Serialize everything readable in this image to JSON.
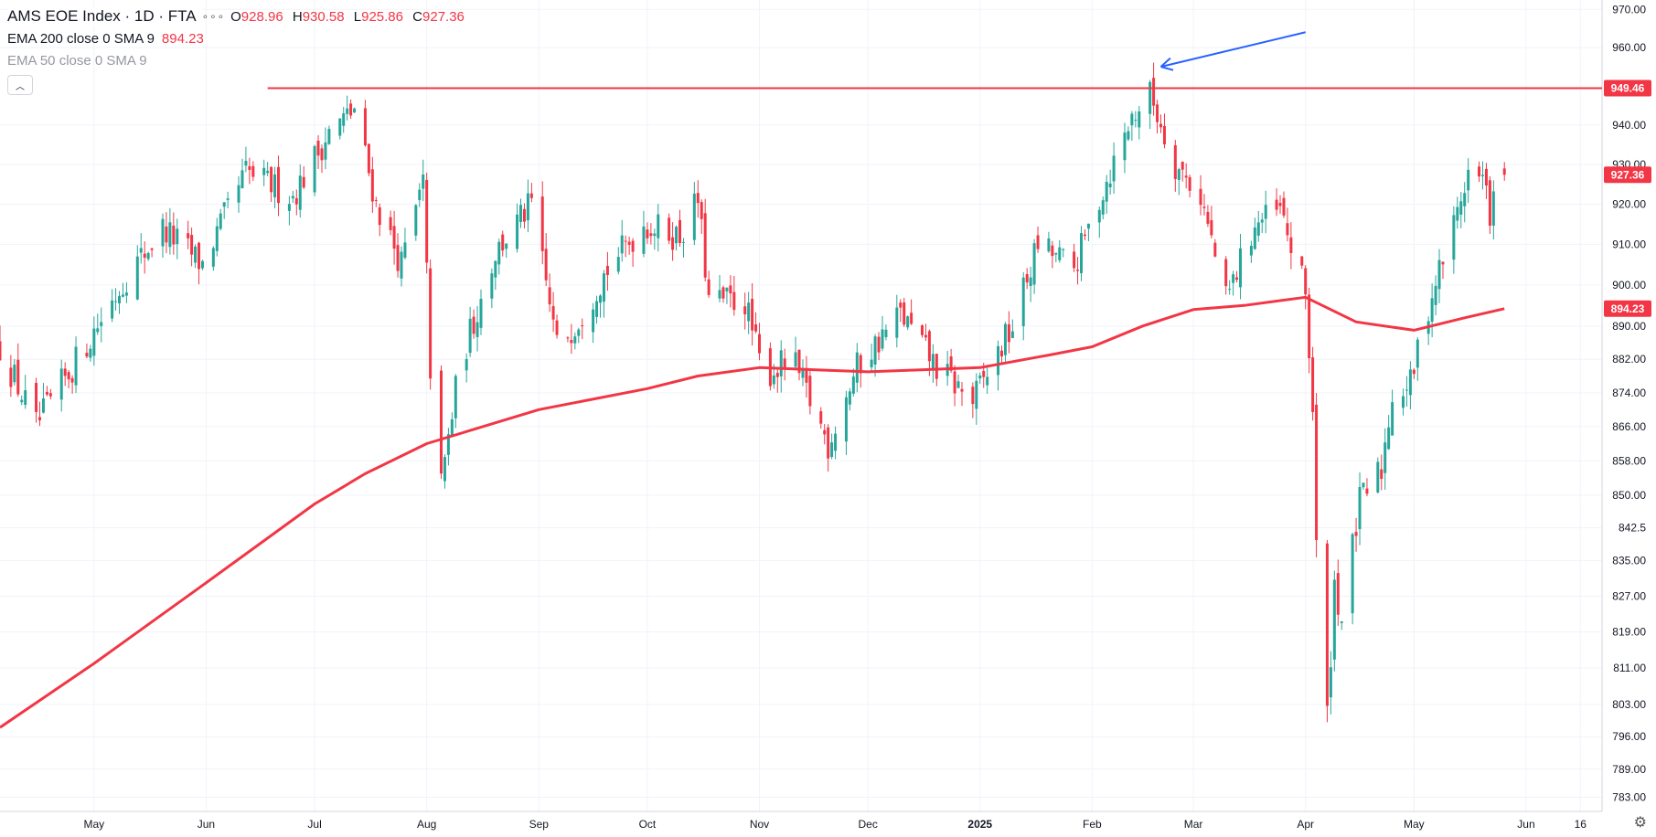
{
  "header": {
    "symbol": "AMS EOE Index · 1D · FTA",
    "more_icon": "ellipsis-icon",
    "ohlc": {
      "open_label": "O",
      "open_value": "928.96",
      "high_label": "H",
      "high_value": "930.58",
      "low_label": "L",
      "low_value": "925.86",
      "close_label": "C",
      "close_value": "927.36"
    },
    "indicators": [
      {
        "name": "EMA 200 close 0 SMA 9",
        "value": "894.23",
        "color": "#f23645"
      },
      {
        "name": "EMA 50 close 0 SMA 9",
        "value": ""
      }
    ],
    "collapse_icon": "chevron-up-icon"
  },
  "chart_data": {
    "type": "candlestick",
    "colors": {
      "up": "#26a69a",
      "down": "#f23645",
      "ema": "#f23645",
      "annotation_arrow": "#2962ff",
      "grid": "#f0f3fa"
    },
    "y_ticks": [
      970.0,
      960.0,
      949.46,
      940.0,
      930.0,
      927.36,
      920.0,
      910.0,
      900.0,
      894.23,
      890.0,
      882.0,
      874.0,
      866.0,
      858.0,
      850.0,
      842.5,
      835.0,
      827.0,
      819.0,
      811.0,
      803.0,
      796.0,
      789.0,
      783.0
    ],
    "y_tick_labels": [
      "970.00",
      "960.00",
      "",
      "940.00",
      "930.00",
      "",
      "920.00",
      "910.00",
      "900.00",
      "",
      "890.00",
      "882.00",
      "874.00",
      "866.00",
      "858.00",
      "850.00",
      "842.5",
      "835.00",
      "827.00",
      "819.00",
      "811.00",
      "803.00",
      "796.00",
      "789.00",
      "783.00"
    ],
    "ylim": [
      780,
      972
    ],
    "x_ticks": [
      {
        "label": "May",
        "date": "2024-05-01"
      },
      {
        "label": "Jun",
        "date": "2024-06-01"
      },
      {
        "label": "Jul",
        "date": "2024-07-01"
      },
      {
        "label": "Aug",
        "date": "2024-08-01"
      },
      {
        "label": "Sep",
        "date": "2024-09-01"
      },
      {
        "label": "Oct",
        "date": "2024-10-01"
      },
      {
        "label": "Nov",
        "date": "2024-11-01"
      },
      {
        "label": "Dec",
        "date": "2024-12-01"
      },
      {
        "label": "2025",
        "date": "2025-01-01",
        "bold": true
      },
      {
        "label": "Feb",
        "date": "2025-02-01"
      },
      {
        "label": "Mar",
        "date": "2025-03-01"
      },
      {
        "label": "Apr",
        "date": "2025-04-01"
      },
      {
        "label": "May",
        "date": "2025-05-01"
      },
      {
        "label": "Jun",
        "date": "2025-06-01"
      },
      {
        "label": "16",
        "date": "2025-06-16"
      }
    ],
    "xlim": [
      "2024-04-05",
      "2025-06-22"
    ],
    "key_prices": [
      {
        "date": "2024-04-05",
        "close": 885
      },
      {
        "date": "2024-04-15",
        "close": 866
      },
      {
        "date": "2024-04-25",
        "close": 880
      },
      {
        "date": "2024-05-10",
        "close": 902
      },
      {
        "date": "2024-05-20",
        "close": 914
      },
      {
        "date": "2024-05-31",
        "close": 905
      },
      {
        "date": "2024-06-12",
        "close": 928
      },
      {
        "date": "2024-06-25",
        "close": 922
      },
      {
        "date": "2024-07-05",
        "close": 938
      },
      {
        "date": "2024-07-12",
        "close": 944
      },
      {
        "date": "2024-07-18",
        "close": 920
      },
      {
        "date": "2024-07-25",
        "close": 905
      },
      {
        "date": "2024-07-31",
        "close": 925
      },
      {
        "date": "2024-08-02",
        "close": 880
      },
      {
        "date": "2024-08-05",
        "close": 852
      },
      {
        "date": "2024-08-10",
        "close": 880
      },
      {
        "date": "2024-08-20",
        "close": 908
      },
      {
        "date": "2024-08-30",
        "close": 920
      },
      {
        "date": "2024-09-06",
        "close": 885
      },
      {
        "date": "2024-09-12",
        "close": 892
      },
      {
        "date": "2024-09-20",
        "close": 904
      },
      {
        "date": "2024-09-30",
        "close": 915
      },
      {
        "date": "2024-10-10",
        "close": 912
      },
      {
        "date": "2024-10-15",
        "close": 921
      },
      {
        "date": "2024-10-18",
        "close": 896
      },
      {
        "date": "2024-10-28",
        "close": 896
      },
      {
        "date": "2024-11-02",
        "close": 878
      },
      {
        "date": "2024-11-10",
        "close": 882
      },
      {
        "date": "2024-11-20",
        "close": 862
      },
      {
        "date": "2024-11-28",
        "close": 880
      },
      {
        "date": "2024-12-10",
        "close": 893
      },
      {
        "date": "2024-12-20",
        "close": 880
      },
      {
        "date": "2024-12-30",
        "close": 872
      },
      {
        "date": "2025-01-10",
        "close": 890
      },
      {
        "date": "2025-01-17",
        "close": 910
      },
      {
        "date": "2025-01-27",
        "close": 904
      },
      {
        "date": "2025-02-05",
        "close": 926
      },
      {
        "date": "2025-02-12",
        "close": 942
      },
      {
        "date": "2025-02-17",
        "close": 948
      },
      {
        "date": "2025-02-24",
        "close": 930
      },
      {
        "date": "2025-03-03",
        "close": 922
      },
      {
        "date": "2025-03-10",
        "close": 896
      },
      {
        "date": "2025-03-18",
        "close": 915
      },
      {
        "date": "2025-03-25",
        "close": 918
      },
      {
        "date": "2025-04-01",
        "close": 898
      },
      {
        "date": "2025-04-03",
        "close": 870
      },
      {
        "date": "2025-04-04",
        "close": 838
      },
      {
        "date": "2025-04-07",
        "close": 800
      },
      {
        "date": "2025-04-09",
        "close": 830
      },
      {
        "date": "2025-04-11",
        "close": 822
      },
      {
        "date": "2025-04-16",
        "close": 848
      },
      {
        "date": "2025-04-22",
        "close": 856
      },
      {
        "date": "2025-04-25",
        "close": 874
      },
      {
        "date": "2025-04-30",
        "close": 876
      },
      {
        "date": "2025-05-05",
        "close": 895
      },
      {
        "date": "2025-05-12",
        "close": 915
      },
      {
        "date": "2025-05-16",
        "close": 928
      },
      {
        "date": "2025-05-20",
        "close": 926
      },
      {
        "date": "2025-05-22",
        "close": 918
      },
      {
        "date": "2025-05-26",
        "close": 927.36
      }
    ],
    "ema200": [
      {
        "date": "2024-04-05",
        "value": 798
      },
      {
        "date": "2024-05-01",
        "value": 812
      },
      {
        "date": "2024-06-01",
        "value": 830
      },
      {
        "date": "2024-07-01",
        "value": 848
      },
      {
        "date": "2024-07-15",
        "value": 855
      },
      {
        "date": "2024-08-01",
        "value": 862
      },
      {
        "date": "2024-09-01",
        "value": 870
      },
      {
        "date": "2024-10-01",
        "value": 875
      },
      {
        "date": "2024-10-15",
        "value": 878
      },
      {
        "date": "2024-11-01",
        "value": 880
      },
      {
        "date": "2024-12-01",
        "value": 879
      },
      {
        "date": "2025-01-01",
        "value": 880
      },
      {
        "date": "2025-01-20",
        "value": 883
      },
      {
        "date": "2025-02-01",
        "value": 885
      },
      {
        "date": "2025-02-15",
        "value": 890
      },
      {
        "date": "2025-03-01",
        "value": 894
      },
      {
        "date": "2025-03-15",
        "value": 895
      },
      {
        "date": "2025-04-01",
        "value": 897
      },
      {
        "date": "2025-04-15",
        "value": 891
      },
      {
        "date": "2025-05-01",
        "value": 889
      },
      {
        "date": "2025-05-15",
        "value": 892
      },
      {
        "date": "2025-05-26",
        "value": 894.23
      }
    ],
    "horizontal_line": {
      "value": 949.46,
      "from_date": "2024-06-18",
      "color": "#f23645"
    },
    "annotation_arrow": {
      "from": {
        "date": "2025-04-01",
        "value": 964
      },
      "to": {
        "date": "2025-02-20",
        "value": 955
      }
    },
    "price_badges": [
      {
        "value": 949.46,
        "label": "949.46",
        "color": "#f23645"
      },
      {
        "value": 927.36,
        "label": "927.36",
        "color": "#f23645"
      },
      {
        "value": 894.23,
        "label": "894.23",
        "color": "#f23645"
      }
    ],
    "grid": true
  },
  "footer": {
    "settings_icon": "gear-icon"
  }
}
